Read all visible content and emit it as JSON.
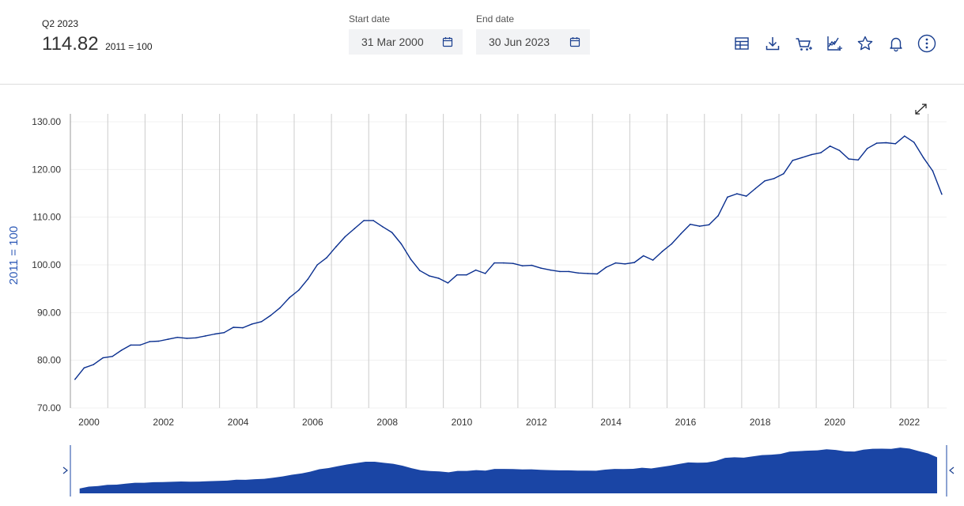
{
  "summary": {
    "period": "Q2 2023",
    "value": "114.82",
    "unit": "2011 = 100"
  },
  "date_range": {
    "start": {
      "label": "Start date",
      "value": "31 Mar 2000"
    },
    "end": {
      "label": "End date",
      "value": "30 Jun 2023"
    }
  },
  "toolbar": {
    "icons": [
      "table-icon",
      "download-icon",
      "cart-icon",
      "chart-add-icon",
      "star-icon",
      "bell-icon",
      "more-icon"
    ]
  },
  "colors": {
    "line": "#0a2f8f",
    "navigator_fill": "#1a45a5",
    "grid": "#cccccc",
    "axis_label": "#2f5bb7"
  },
  "chart_data": {
    "type": "line",
    "ylabel": "2011 = 100",
    "ylim": [
      70,
      130
    ],
    "yticks": [
      "70.00",
      "80.00",
      "90.00",
      "100.00",
      "110.00",
      "120.00",
      "130.00"
    ],
    "xlim": [
      "2000-01-01",
      "2023-07-01"
    ],
    "xticks": [
      "2000",
      "2002",
      "2004",
      "2006",
      "2008",
      "2010",
      "2012",
      "2014",
      "2016",
      "2018",
      "2020",
      "2022"
    ],
    "grid": "vertical lines at year boundaries",
    "series": [
      {
        "x": [
          "Q1 2000",
          "Q2 2000",
          "Q3 2000",
          "Q4 2000",
          "Q1 2001",
          "Q2 2001",
          "Q3 2001",
          "Q4 2001",
          "Q1 2002",
          "Q2 2002",
          "Q3 2002",
          "Q4 2002",
          "Q1 2003",
          "Q2 2003",
          "Q3 2003",
          "Q4 2003",
          "Q1 2004",
          "Q2 2004",
          "Q3 2004",
          "Q4 2004",
          "Q1 2005",
          "Q2 2005",
          "Q3 2005",
          "Q4 2005",
          "Q1 2006",
          "Q2 2006",
          "Q3 2006",
          "Q4 2006",
          "Q1 2007",
          "Q2 2007",
          "Q3 2007",
          "Q4 2007",
          "Q1 2008",
          "Q2 2008",
          "Q3 2008",
          "Q4 2008",
          "Q1 2009",
          "Q2 2009",
          "Q3 2009",
          "Q4 2009",
          "Q1 2010",
          "Q2 2010",
          "Q3 2010",
          "Q4 2010",
          "Q1 2011",
          "Q2 2011",
          "Q3 2011",
          "Q4 2011",
          "Q1 2012",
          "Q2 2012",
          "Q3 2012",
          "Q4 2012",
          "Q1 2013",
          "Q2 2013",
          "Q3 2013",
          "Q4 2013",
          "Q1 2014",
          "Q2 2014",
          "Q3 2014",
          "Q4 2014",
          "Q1 2015",
          "Q2 2015",
          "Q3 2015",
          "Q4 2015",
          "Q1 2016",
          "Q2 2016",
          "Q3 2016",
          "Q4 2016",
          "Q1 2017",
          "Q2 2017",
          "Q3 2017",
          "Q4 2017",
          "Q1 2018",
          "Q2 2018",
          "Q3 2018",
          "Q4 2018",
          "Q1 2019",
          "Q2 2019",
          "Q3 2019",
          "Q4 2019",
          "Q1 2020",
          "Q2 2020",
          "Q3 2020",
          "Q4 2020",
          "Q1 2021",
          "Q2 2021",
          "Q3 2021",
          "Q4 2021",
          "Q1 2022",
          "Q2 2022",
          "Q3 2022",
          "Q4 2022",
          "Q1 2023",
          "Q2 2023"
        ],
        "values": [
          76.0,
          78.4,
          79.1,
          80.5,
          80.8,
          82.1,
          83.2,
          83.2,
          83.9,
          84.0,
          84.4,
          84.8,
          84.6,
          84.7,
          85.1,
          85.5,
          85.8,
          86.9,
          86.8,
          87.6,
          88.1,
          89.4,
          91.0,
          93.1,
          94.7,
          97.0,
          100.0,
          101.5,
          103.8,
          105.9,
          107.6,
          109.3,
          109.3,
          108.0,
          106.8,
          104.4,
          101.2,
          98.8,
          97.7,
          97.2,
          96.2,
          97.9,
          97.9,
          98.9,
          98.2,
          100.4,
          100.4,
          100.3,
          99.8,
          99.9,
          99.3,
          98.9,
          98.6,
          98.6,
          98.3,
          98.2,
          98.1,
          99.5,
          100.4,
          100.2,
          100.5,
          101.9,
          101.0,
          102.8,
          104.4,
          106.5,
          108.5,
          108.1,
          108.4,
          110.3,
          114.2,
          114.9,
          114.4,
          116.0,
          117.6,
          118.1,
          119.1,
          121.9,
          122.5,
          123.1,
          123.5,
          124.9,
          124.0,
          122.2,
          122.0,
          124.4,
          125.5,
          125.6,
          125.4,
          127.0,
          125.7,
          122.5,
          119.7,
          114.82
        ]
      }
    ]
  }
}
